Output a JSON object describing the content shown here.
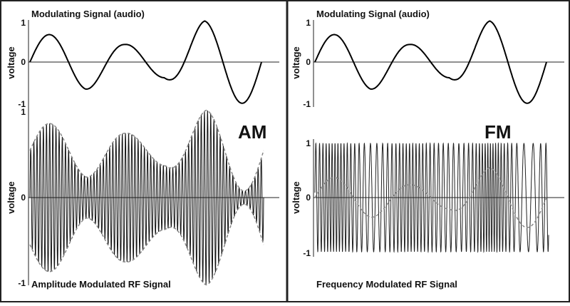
{
  "left": {
    "top": {
      "title": "Modulating Signal (audio)",
      "y_label": "voltage",
      "ticks": [
        "1",
        "0",
        "-1"
      ]
    },
    "bottom": {
      "mode": "AM",
      "y_label": "voltage",
      "ticks": [
        "1",
        "0",
        "-1"
      ],
      "caption": "Amplitude Modulated RF Signal"
    }
  },
  "right": {
    "top": {
      "title": "Modulating Signal (audio)",
      "y_label": "voltage",
      "ticks": [
        "1",
        "0",
        "-1"
      ]
    },
    "bottom": {
      "mode": "FM",
      "y_label": "voltage",
      "ticks": [
        "1",
        "0",
        "-1"
      ],
      "caption": "Frequency Modulated RF Signal"
    }
  }
}
